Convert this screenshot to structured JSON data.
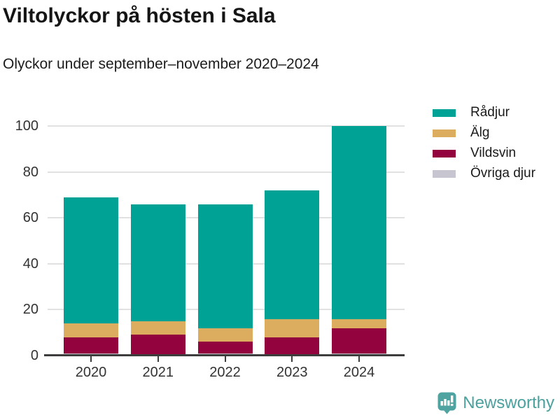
{
  "header": {
    "title": "Viltolyckor på hösten i Sala",
    "subtitle": "Olyckor under september–november 2020–2024"
  },
  "chart_data": {
    "type": "bar",
    "stacked": true,
    "title": "Viltolyckor på hösten i Sala",
    "subtitle": "Olyckor under september–november 2020–2024",
    "categories": [
      "2020",
      "2021",
      "2022",
      "2023",
      "2024"
    ],
    "series": [
      {
        "name": "Rådjur",
        "color": "#00a296",
        "values": [
          55,
          51,
          54,
          56,
          84
        ]
      },
      {
        "name": "Älg",
        "color": "#dcad5f",
        "values": [
          6,
          6,
          6,
          8,
          4
        ]
      },
      {
        "name": "Vildsvin",
        "color": "#93043e",
        "values": [
          7,
          9,
          5,
          8,
          11
        ]
      },
      {
        "name": "Övriga djur",
        "color": "#c7c5d0",
        "values": [
          1,
          0,
          1,
          0,
          1
        ]
      }
    ],
    "totals": [
      69,
      66,
      66,
      72,
      100
    ],
    "xlabel": "",
    "ylabel": "",
    "ylim": [
      0,
      100
    ],
    "yticks": [
      0,
      20,
      40,
      60,
      80,
      100
    ],
    "grid": true,
    "grid_color": "#e1e1e1",
    "axis_color": "#3d3d3d",
    "legend_position": "right"
  },
  "footer": {
    "brand": "Newsworthy",
    "brand_color": "#4ba19e",
    "logo_icon": "bar-chart-speech-bubble-icon"
  }
}
